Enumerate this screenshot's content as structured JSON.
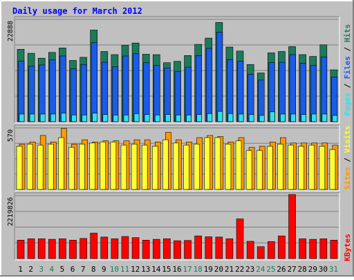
{
  "chart_data": [
    {
      "type": "bar",
      "title": "Daily usage for March 2012",
      "categories": [
        "1",
        "2",
        "3",
        "4",
        "5",
        "6",
        "7",
        "8",
        "9",
        "10",
        "11",
        "12",
        "13",
        "14",
        "15",
        "16",
        "17",
        "18",
        "19",
        "20",
        "21",
        "22",
        "23",
        "24",
        "25",
        "26",
        "27",
        "28",
        "29",
        "30",
        "31"
      ],
      "weekend_days": [
        "3",
        "4",
        "10",
        "11",
        "17",
        "18",
        "24",
        "25",
        "31"
      ],
      "y_max_label": "22888",
      "ylim": [
        0,
        22888
      ],
      "side_label": [
        "Pages",
        "Files",
        "Hits"
      ],
      "series": [
        {
          "name": "Hits",
          "color": "#1b7b5b",
          "values": [
            16200,
            15300,
            14200,
            15500,
            16500,
            13700,
            14400,
            20500,
            15700,
            15000,
            17100,
            17600,
            15100,
            15000,
            13200,
            13500,
            14800,
            17300,
            18700,
            22200,
            16700,
            15800,
            12800,
            10900,
            15400,
            15700,
            16800,
            15000,
            14600,
            17200,
            11600
          ]
        },
        {
          "name": "Files",
          "color": "#1a5be8",
          "values": [
            13500,
            12400,
            12700,
            13800,
            14700,
            11800,
            12800,
            17700,
            13300,
            12300,
            14700,
            15200,
            13200,
            12600,
            12000,
            11200,
            12200,
            14800,
            16400,
            20000,
            13900,
            13500,
            10600,
            9300,
            13200,
            13300,
            15000,
            13100,
            12600,
            14500,
            10000
          ]
        },
        {
          "name": "Pages",
          "color": "#30e0f0",
          "values": [
            1700,
            1700,
            1700,
            1700,
            1900,
            1500,
            1500,
            1900,
            1600,
            1500,
            1500,
            1800,
            1600,
            1500,
            1600,
            1500,
            1500,
            1600,
            1800,
            2300,
            1800,
            1700,
            1600,
            1400,
            2200,
            1700,
            1700,
            1600,
            1700,
            1700,
            1400
          ]
        }
      ]
    },
    {
      "type": "bar",
      "categories": [
        "1",
        "2",
        "3",
        "4",
        "5",
        "6",
        "7",
        "8",
        "9",
        "10",
        "11",
        "12",
        "13",
        "14",
        "15",
        "16",
        "17",
        "18",
        "19",
        "20",
        "21",
        "22",
        "23",
        "24",
        "25",
        "26",
        "27",
        "28",
        "29",
        "30",
        "31"
      ],
      "y_max_label": "570",
      "ylim": [
        0,
        570
      ],
      "side_label": [
        "Sites",
        "Visits"
      ],
      "series": [
        {
          "name": "Visits",
          "color": "#ff9900",
          "values": [
            420,
            440,
            500,
            440,
            565,
            420,
            460,
            440,
            450,
            450,
            450,
            460,
            460,
            440,
            530,
            460,
            440,
            480,
            500,
            490,
            440,
            480,
            390,
            400,
            440,
            480,
            430,
            430,
            430,
            430,
            410
          ]
        },
        {
          "name": "Sites",
          "color": "#ffff33",
          "values": [
            400,
            420,
            410,
            420,
            480,
            390,
            420,
            430,
            440,
            440,
            410,
            420,
            410,
            400,
            460,
            430,
            410,
            420,
            480,
            480,
            420,
            450,
            360,
            360,
            400,
            420,
            410,
            400,
            410,
            400,
            370
          ]
        }
      ]
    },
    {
      "type": "bar",
      "categories": [
        "1",
        "2",
        "3",
        "4",
        "5",
        "6",
        "7",
        "8",
        "9",
        "10",
        "11",
        "12",
        "13",
        "14",
        "15",
        "16",
        "17",
        "18",
        "19",
        "20",
        "21",
        "22",
        "23",
        "24",
        "25",
        "26",
        "27",
        "28",
        "29",
        "30",
        "31"
      ],
      "y_max_label": "2219826",
      "ylim": [
        0,
        2219826
      ],
      "side_label": [
        "KBytes"
      ],
      "series": [
        {
          "name": "KBytes",
          "color": "#ff0000",
          "values": [
            650000,
            700000,
            700000,
            680000,
            700000,
            650000,
            710000,
            900000,
            760000,
            700000,
            780000,
            740000,
            650000,
            680000,
            700000,
            630000,
            640000,
            800000,
            770000,
            760000,
            700000,
            1400000,
            610000,
            420000,
            600000,
            800000,
            2260000,
            700000,
            680000,
            700000,
            650000
          ]
        }
      ]
    }
  ],
  "colors": {
    "background": "#c0c0c0",
    "title": "#0000ff",
    "hits_label": "#1b7b5b",
    "files_label": "#1a5be8",
    "pages_label": "#30e0f0",
    "sites_label": "#ff9900",
    "visits_label": "#ffff33",
    "kbytes_label": "#ff0000",
    "weekday_text": "#000000",
    "weekend_text": "#1b7b5b"
  }
}
